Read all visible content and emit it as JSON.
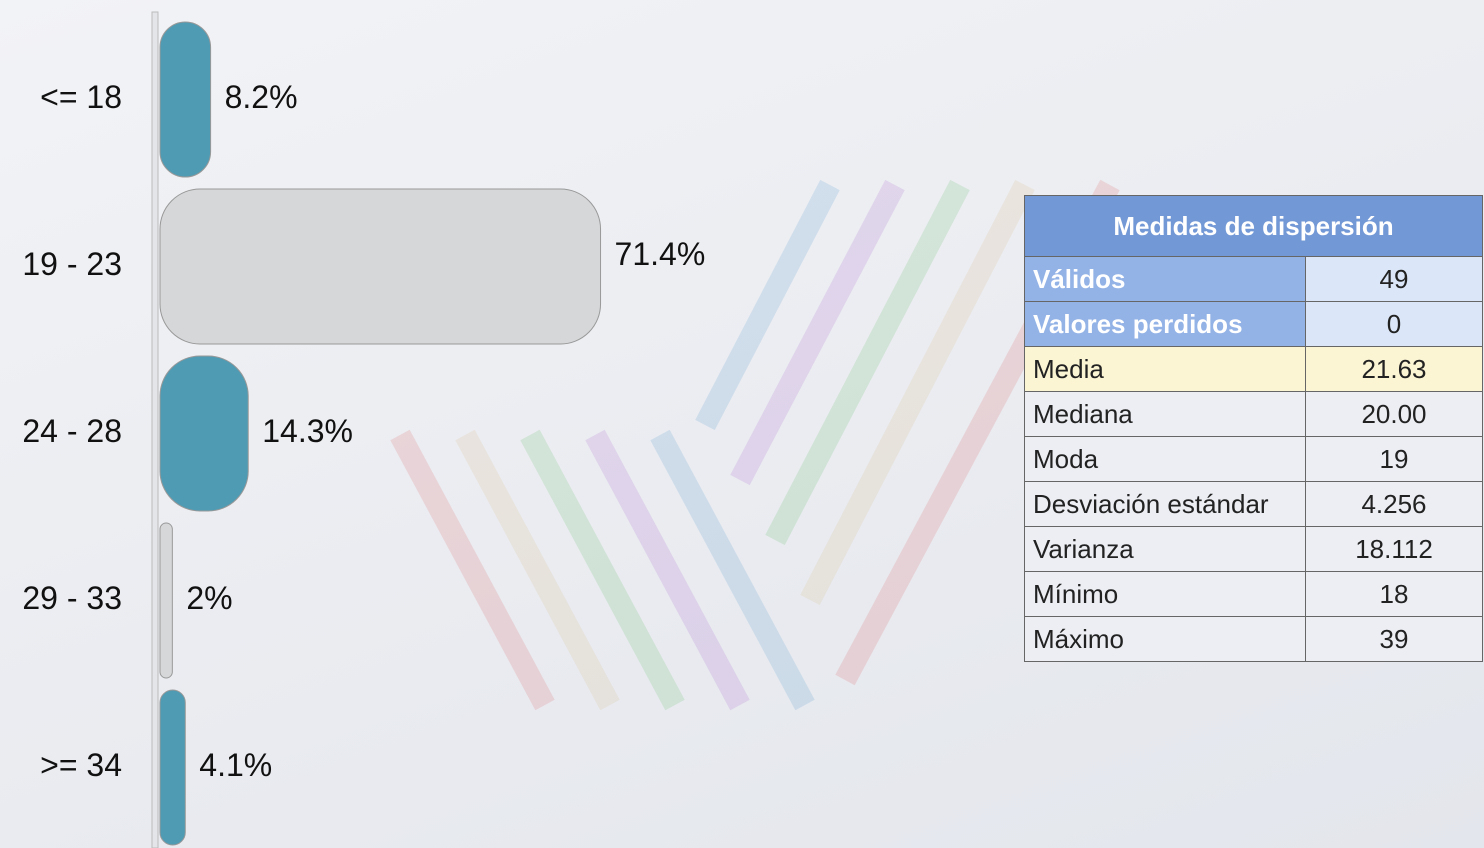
{
  "chart_data": {
    "type": "bar",
    "orientation": "horizontal",
    "categories": [
      "<= 18",
      "19 - 23",
      "24 - 28",
      "29 - 33",
      ">= 34"
    ],
    "values": [
      8.2,
      71.4,
      14.3,
      2,
      4.1
    ],
    "value_labels": [
      "8.2%",
      "71.4%",
      "14.3%",
      "2%",
      "4.1%"
    ],
    "colors": [
      "#4f9bb3",
      "#d6d7d9",
      "#4f9bb3",
      "#d6d7d9",
      "#4f9bb3"
    ]
  },
  "table": {
    "title": "Medidas de dispersión",
    "rows": [
      [
        "Válidos",
        "49"
      ],
      [
        "Valores perdidos",
        "0"
      ],
      [
        "Media",
        "21.63"
      ],
      [
        "Mediana",
        "20.00"
      ],
      [
        "Moda",
        "19"
      ],
      [
        "Desviación estándar",
        "4.256"
      ],
      [
        "Varianza",
        "18.112"
      ],
      [
        "Mínimo",
        "18"
      ],
      [
        "Máximo",
        "39"
      ]
    ]
  }
}
